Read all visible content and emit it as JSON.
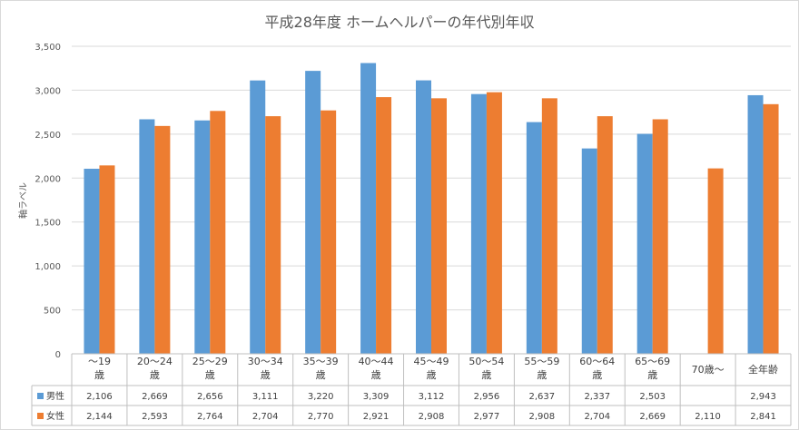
{
  "chart_data": {
    "type": "bar",
    "title": "平成28年度  ホームヘルパーの年代別年収",
    "ylabel": "軸ラベル",
    "xlabel": "",
    "ylim": [
      0,
      3500
    ],
    "yticks": [
      0,
      500,
      1000,
      1500,
      2000,
      2500,
      3000,
      3500
    ],
    "ytick_labels": [
      "0",
      "500",
      "1,000",
      "1,500",
      "2,000",
      "2,500",
      "3,000",
      "3,500"
    ],
    "grid": true,
    "legend": "data-table",
    "categories": [
      [
        "～19",
        "歳"
      ],
      [
        "20～24",
        "歳"
      ],
      [
        "25～29",
        "歳"
      ],
      [
        "30～34",
        "歳"
      ],
      [
        "35～39",
        "歳"
      ],
      [
        "40～44",
        "歳"
      ],
      [
        "45～49",
        "歳"
      ],
      [
        "50～54",
        "歳"
      ],
      [
        "55～59",
        "歳"
      ],
      [
        "60～64",
        "歳"
      ],
      [
        "65～69",
        "歳"
      ],
      [
        "70歳～"
      ],
      [
        "全年齢"
      ]
    ],
    "series": [
      {
        "name": "男性",
        "color": "#5B9BD5",
        "values": [
          2106,
          2669,
          2656,
          3111,
          3220,
          3309,
          3112,
          2956,
          2637,
          2337,
          2503,
          null,
          2943
        ],
        "labels": [
          "2,106",
          "2,669",
          "2,656",
          "3,111",
          "3,220",
          "3,309",
          "3,112",
          "2,956",
          "2,637",
          "2,337",
          "2,503",
          "",
          "2,943"
        ]
      },
      {
        "name": "女性",
        "color": "#ED7D31",
        "values": [
          2144,
          2593,
          2764,
          2704,
          2770,
          2921,
          2908,
          2977,
          2908,
          2704,
          2669,
          2110,
          2841
        ],
        "labels": [
          "2,144",
          "2,593",
          "2,764",
          "2,704",
          "2,770",
          "2,921",
          "2,908",
          "2,977",
          "2,908",
          "2,704",
          "2,669",
          "2,110",
          "2,841"
        ]
      }
    ]
  }
}
